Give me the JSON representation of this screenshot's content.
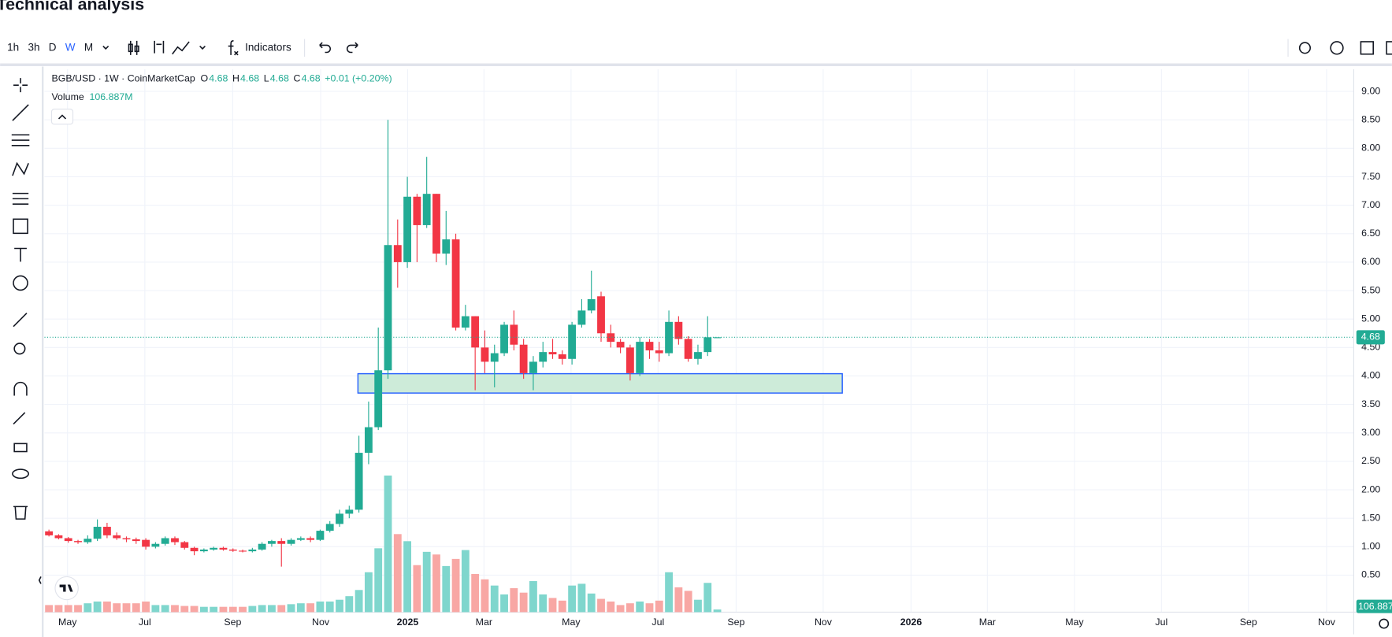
{
  "page_title": "Technical analysis",
  "toolbar": {
    "intervals": [
      "1h",
      "3h",
      "D",
      "W",
      "M"
    ],
    "indicators": "Indicators"
  },
  "chart_data": {
    "type": "candlestick",
    "title": "BGB/USD · 1W · CoinMarketCap",
    "ohlc_letters": [
      "O",
      "H",
      "L",
      "C"
    ],
    "change_label": "+0.01 (+0.20%)",
    "volume_name": "Volume",
    "volume_label": "106.887M",
    "up_color": "#22ab94",
    "down_color": "#f23645",
    "up_volume_color": "#7fd6cd",
    "down_volume_color": "#f8a7a4",
    "grid": true,
    "categories": [
      null,
      null,
      null,
      null,
      null,
      null,
      null,
      null,
      null,
      null,
      null,
      null,
      null,
      null,
      null,
      null,
      null,
      null,
      null,
      null,
      null,
      null,
      null,
      null,
      null,
      null,
      null,
      null,
      null,
      null,
      null,
      null,
      null,
      null,
      null,
      null,
      null,
      null,
      null,
      null,
      null,
      null,
      null,
      null,
      null,
      null,
      null,
      null,
      null,
      null,
      null,
      null,
      null,
      null,
      null,
      null,
      null,
      null,
      null,
      null,
      null,
      null,
      null,
      null,
      null,
      null,
      null,
      null,
      null,
      null
    ],
    "open": [
      1.27,
      1.2,
      1.15,
      1.1,
      1.08,
      1.14,
      1.35,
      1.2,
      1.15,
      1.13,
      1.12,
      1.0,
      1.05,
      1.15,
      1.08,
      0.98,
      0.92,
      0.95,
      0.98,
      0.95,
      0.93,
      0.92,
      0.95,
      1.05,
      1.1,
      1.05,
      1.12,
      1.15,
      1.12,
      1.28,
      1.4,
      1.58,
      1.65,
      2.65,
      3.1,
      4.1,
      6.3,
      6.0,
      7.15,
      6.65,
      7.2,
      6.15,
      6.4,
      4.85,
      5.05,
      4.5,
      4.25,
      4.4,
      4.9,
      4.55,
      4.05,
      4.25,
      4.42,
      4.38,
      4.3,
      4.9,
      5.15,
      5.4,
      4.75,
      4.6,
      4.5,
      4.05,
      4.6,
      4.45,
      4.4,
      4.95,
      4.65,
      4.3,
      4.42,
      4.68
    ],
    "high": [
      1.3,
      1.22,
      1.17,
      1.12,
      1.2,
      1.48,
      1.42,
      1.25,
      1.18,
      1.16,
      1.15,
      1.08,
      1.18,
      1.18,
      1.1,
      1.0,
      0.97,
      1.0,
      1.0,
      0.97,
      0.95,
      0.98,
      1.08,
      1.12,
      1.15,
      1.15,
      1.18,
      1.18,
      1.3,
      1.45,
      1.65,
      1.72,
      2.95,
      3.55,
      4.85,
      8.5,
      6.75,
      7.5,
      7.2,
      7.85,
      7.2,
      6.9,
      6.5,
      5.25,
      5.05,
      4.8,
      4.55,
      4.95,
      5.15,
      4.65,
      4.35,
      4.6,
      4.65,
      4.45,
      4.95,
      5.35,
      5.85,
      5.48,
      4.9,
      4.65,
      4.55,
      4.68,
      4.65,
      4.6,
      5.15,
      5.05,
      4.7,
      4.55,
      5.05,
      4.68
    ],
    "low": [
      1.18,
      1.13,
      1.07,
      1.05,
      1.05,
      1.1,
      1.15,
      1.12,
      1.08,
      1.05,
      0.95,
      0.97,
      1.02,
      1.03,
      0.95,
      0.85,
      0.9,
      0.93,
      0.93,
      0.91,
      0.9,
      0.9,
      0.93,
      1.0,
      0.65,
      1.02,
      1.1,
      1.08,
      1.1,
      1.25,
      1.35,
      1.5,
      1.6,
      2.45,
      3.05,
      3.95,
      5.55,
      5.9,
      6.0,
      6.6,
      6.0,
      5.95,
      4.8,
      4.8,
      3.75,
      4.05,
      3.8,
      4.35,
      4.45,
      3.95,
      3.75,
      4.15,
      4.3,
      4.2,
      4.2,
      4.85,
      5.1,
      4.6,
      4.5,
      4.4,
      3.92,
      4.0,
      4.3,
      4.25,
      4.35,
      4.55,
      4.25,
      4.2,
      4.35,
      4.68
    ],
    "close": [
      1.2,
      1.15,
      1.1,
      1.08,
      1.14,
      1.35,
      1.2,
      1.15,
      1.13,
      1.1,
      1.0,
      1.05,
      1.15,
      1.08,
      0.98,
      0.92,
      0.95,
      0.98,
      0.95,
      0.93,
      0.92,
      0.95,
      1.05,
      1.1,
      1.05,
      1.12,
      1.15,
      1.12,
      1.28,
      1.4,
      1.58,
      1.65,
      2.65,
      3.1,
      4.1,
      6.3,
      6.0,
      7.15,
      6.65,
      7.2,
      6.15,
      6.4,
      4.85,
      5.05,
      4.5,
      4.25,
      4.4,
      4.9,
      4.55,
      4.05,
      4.25,
      4.42,
      4.38,
      4.3,
      4.9,
      5.15,
      5.35,
      4.75,
      4.6,
      4.5,
      4.05,
      4.6,
      4.45,
      4.4,
      4.95,
      4.65,
      4.3,
      4.42,
      4.68,
      4.68
    ],
    "volume": [
      285,
      285,
      285,
      285,
      356,
      427,
      427,
      356,
      356,
      356,
      427,
      285,
      285,
      285,
      249,
      249,
      214,
      214,
      214,
      214,
      214,
      249,
      285,
      285,
      285,
      320,
      356,
      356,
      427,
      427,
      498,
      641,
      890,
      1602,
      2563,
      5483,
      3133,
      2848,
      1887,
      2421,
      2314,
      1851,
      2136,
      2492,
      1531,
      1317,
      1068,
      712,
      961,
      783,
      1246,
      712,
      570,
      463,
      1068,
      1139,
      748,
      534,
      427,
      285,
      356,
      427,
      356,
      463,
      1602,
      997,
      854,
      498,
      1175,
      106.887
    ],
    "rectangle": {
      "from": 31.9,
      "to": 81.9,
      "top": 4.04,
      "bottom": 3.7,
      "color": "#2962ff",
      "fill": "#cdebd9"
    },
    "xlim": [
      -0.46,
      134.7
    ],
    "xticks": [
      {
        "value": 1.92,
        "label": "May"
      },
      {
        "value": 9.9,
        "label": "Jul"
      },
      {
        "value": 18.97,
        "label": "Sep"
      },
      {
        "value": 28.05,
        "label": "Nov"
      },
      2025,
      {
        "value": 44.91,
        "label": "Mar"
      },
      {
        "value": 53.9,
        "label": "May"
      },
      {
        "value": 62.88,
        "label": "Jul"
      },
      {
        "value": 70.94,
        "label": "Sep"
      },
      {
        "value": 79.93,
        "label": "Nov"
      },
      2026,
      {
        "value": 96.88,
        "label": "Mar"
      },
      {
        "value": 105.87,
        "label": "May"
      },
      {
        "value": 114.85,
        "label": "Jul"
      },
      {
        "value": 123.83,
        "label": "Sep"
      },
      {
        "value": 131.9,
        "label": "Nov"
      }
    ],
    "year_tick_positions": [
      37.03,
      89.0
    ],
    "ylim": [
      -0.15,
      9.39
    ],
    "yticks": [
      {
        "value": 0.5,
        "label": "0.50"
      },
      {
        "value": 1,
        "label": "1.00"
      },
      {
        "value": 1.5,
        "label": "1.50"
      },
      {
        "value": 2,
        "label": "2.00"
      },
      {
        "value": 2.5,
        "label": "2.50"
      },
      {
        "value": 3,
        "label": "3.00"
      },
      {
        "value": 3.5,
        "label": "3.50"
      },
      {
        "value": 4,
        "label": "4.00"
      },
      {
        "value": 4.5,
        "label": "4.50"
      },
      {
        "value": 5,
        "label": "5.00"
      },
      {
        "value": 5.5,
        "label": "5.50"
      },
      {
        "value": 6,
        "label": "6.00"
      },
      {
        "value": 6.5,
        "label": "6.50"
      },
      {
        "value": 7,
        "label": "7.00"
      },
      {
        "value": 7.5,
        "label": "7.50"
      },
      {
        "value": 8,
        "label": "8.00"
      },
      {
        "value": 8.5,
        "label": "8.50"
      },
      {
        "value": 9,
        "label": "9.00"
      }
    ]
  }
}
